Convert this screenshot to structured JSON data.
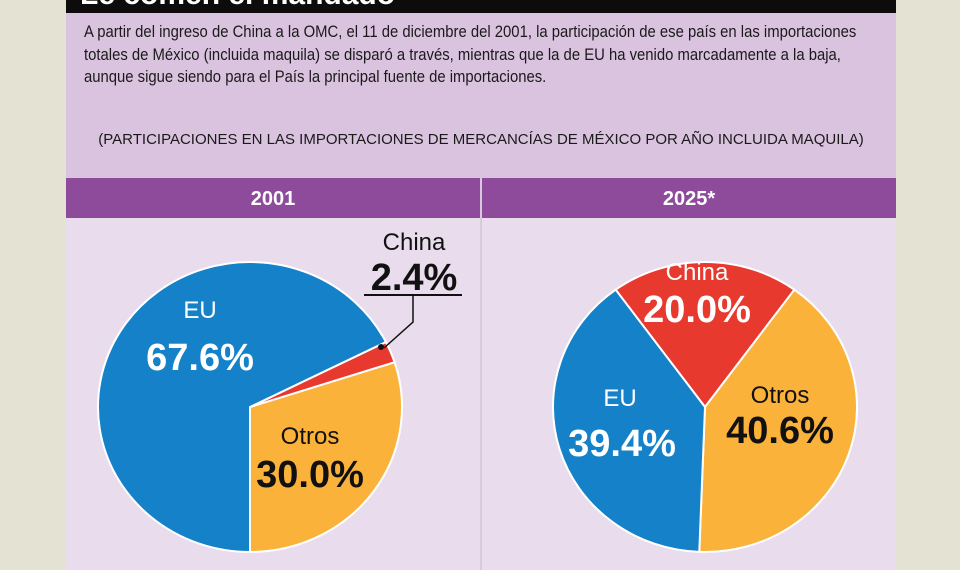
{
  "header": {
    "title": "Le comen el mandado"
  },
  "intro": {
    "text": "A partir del ingreso de China a la OMC, el 11 de diciembre del 2001, la participación de ese país en las importaciones totales de México (incluida maquila) se disparó a través, mientras que la de EU ha venido marcadamente a la baja, aunque sigue siendo para el País la principal fuente de importaciones.",
    "subtitle": "(PARTICIPACIONES EN LAS IMPORTACIONES DE MERCANCÍAS DE MÉXICO POR AÑO INCLUIDA MAQUILA)"
  },
  "colors": {
    "EU": "#1581c9",
    "China": "#e8392f",
    "Otros": "#fbb23a",
    "band": "#8e4a9b"
  },
  "chart_data": [
    {
      "type": "pie",
      "title": "2001",
      "slices": [
        {
          "label": "EU",
          "value": 67.6,
          "display": "67.6%"
        },
        {
          "label": "China",
          "value": 2.4,
          "display": "2.4%"
        },
        {
          "label": "Otros",
          "value": 30.0,
          "display": "30.0%"
        }
      ]
    },
    {
      "type": "pie",
      "title": "2025*",
      "slices": [
        {
          "label": "EU",
          "value": 39.4,
          "display": "39.4%"
        },
        {
          "label": "China",
          "value": 20.0,
          "display": "20.0%"
        },
        {
          "label": "Otros",
          "value": 40.6,
          "display": "40.6%"
        }
      ]
    }
  ]
}
